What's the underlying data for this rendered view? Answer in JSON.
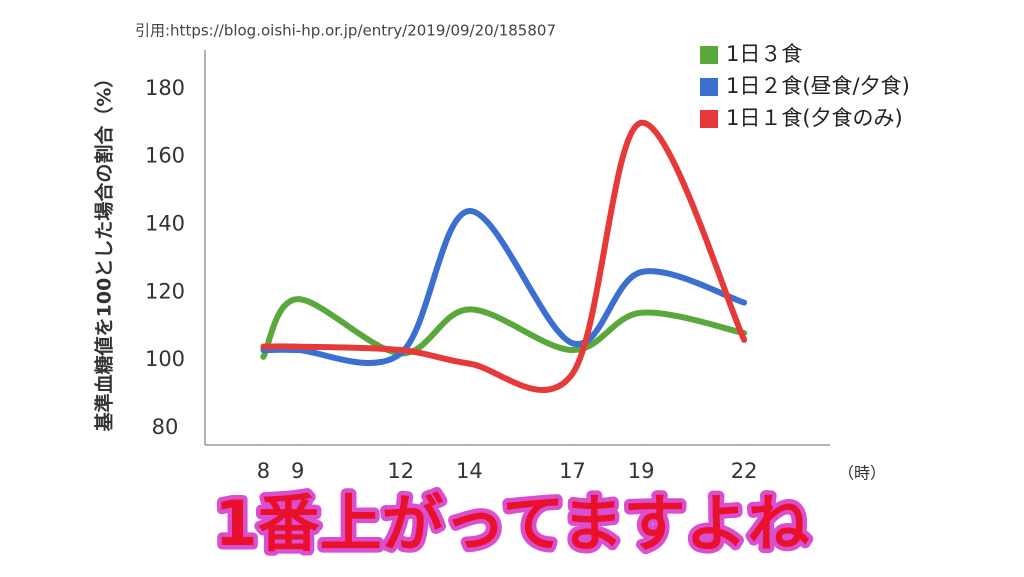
{
  "chart_data": {
    "type": "line",
    "source": "引用:https://blog.oishi-hp.or.jp/entry/2019/09/20/185807",
    "ylabel": "基準血糖値を100とした場合の割合（%）",
    "xlabel": "（時）",
    "x": [
      8,
      9,
      12,
      14,
      17,
      19,
      22
    ],
    "xlim": [
      6.3,
      24.5
    ],
    "xticks": [
      8,
      9,
      12,
      14,
      17,
      19,
      22
    ],
    "ylim": [
      75,
      190
    ],
    "yticks": [
      80,
      100,
      120,
      140,
      160,
      180
    ],
    "legend": "top-right",
    "series": [
      {
        "name": "1日３食",
        "color": "#5aa83c",
        "values": [
          101,
          118,
          102,
          115,
          103,
          114,
          108
        ]
      },
      {
        "name": "1日２食(昼食/夕食)",
        "color": "#3b6fd0",
        "values": [
          103,
          103,
          102,
          144,
          105,
          126,
          117
        ]
      },
      {
        "name": "1日１食(夕食のみ)",
        "color": "#e63a3a",
        "values": [
          104,
          104,
          103,
          99,
          96,
          170,
          106
        ]
      }
    ]
  },
  "caption": "1番上がってますよね"
}
